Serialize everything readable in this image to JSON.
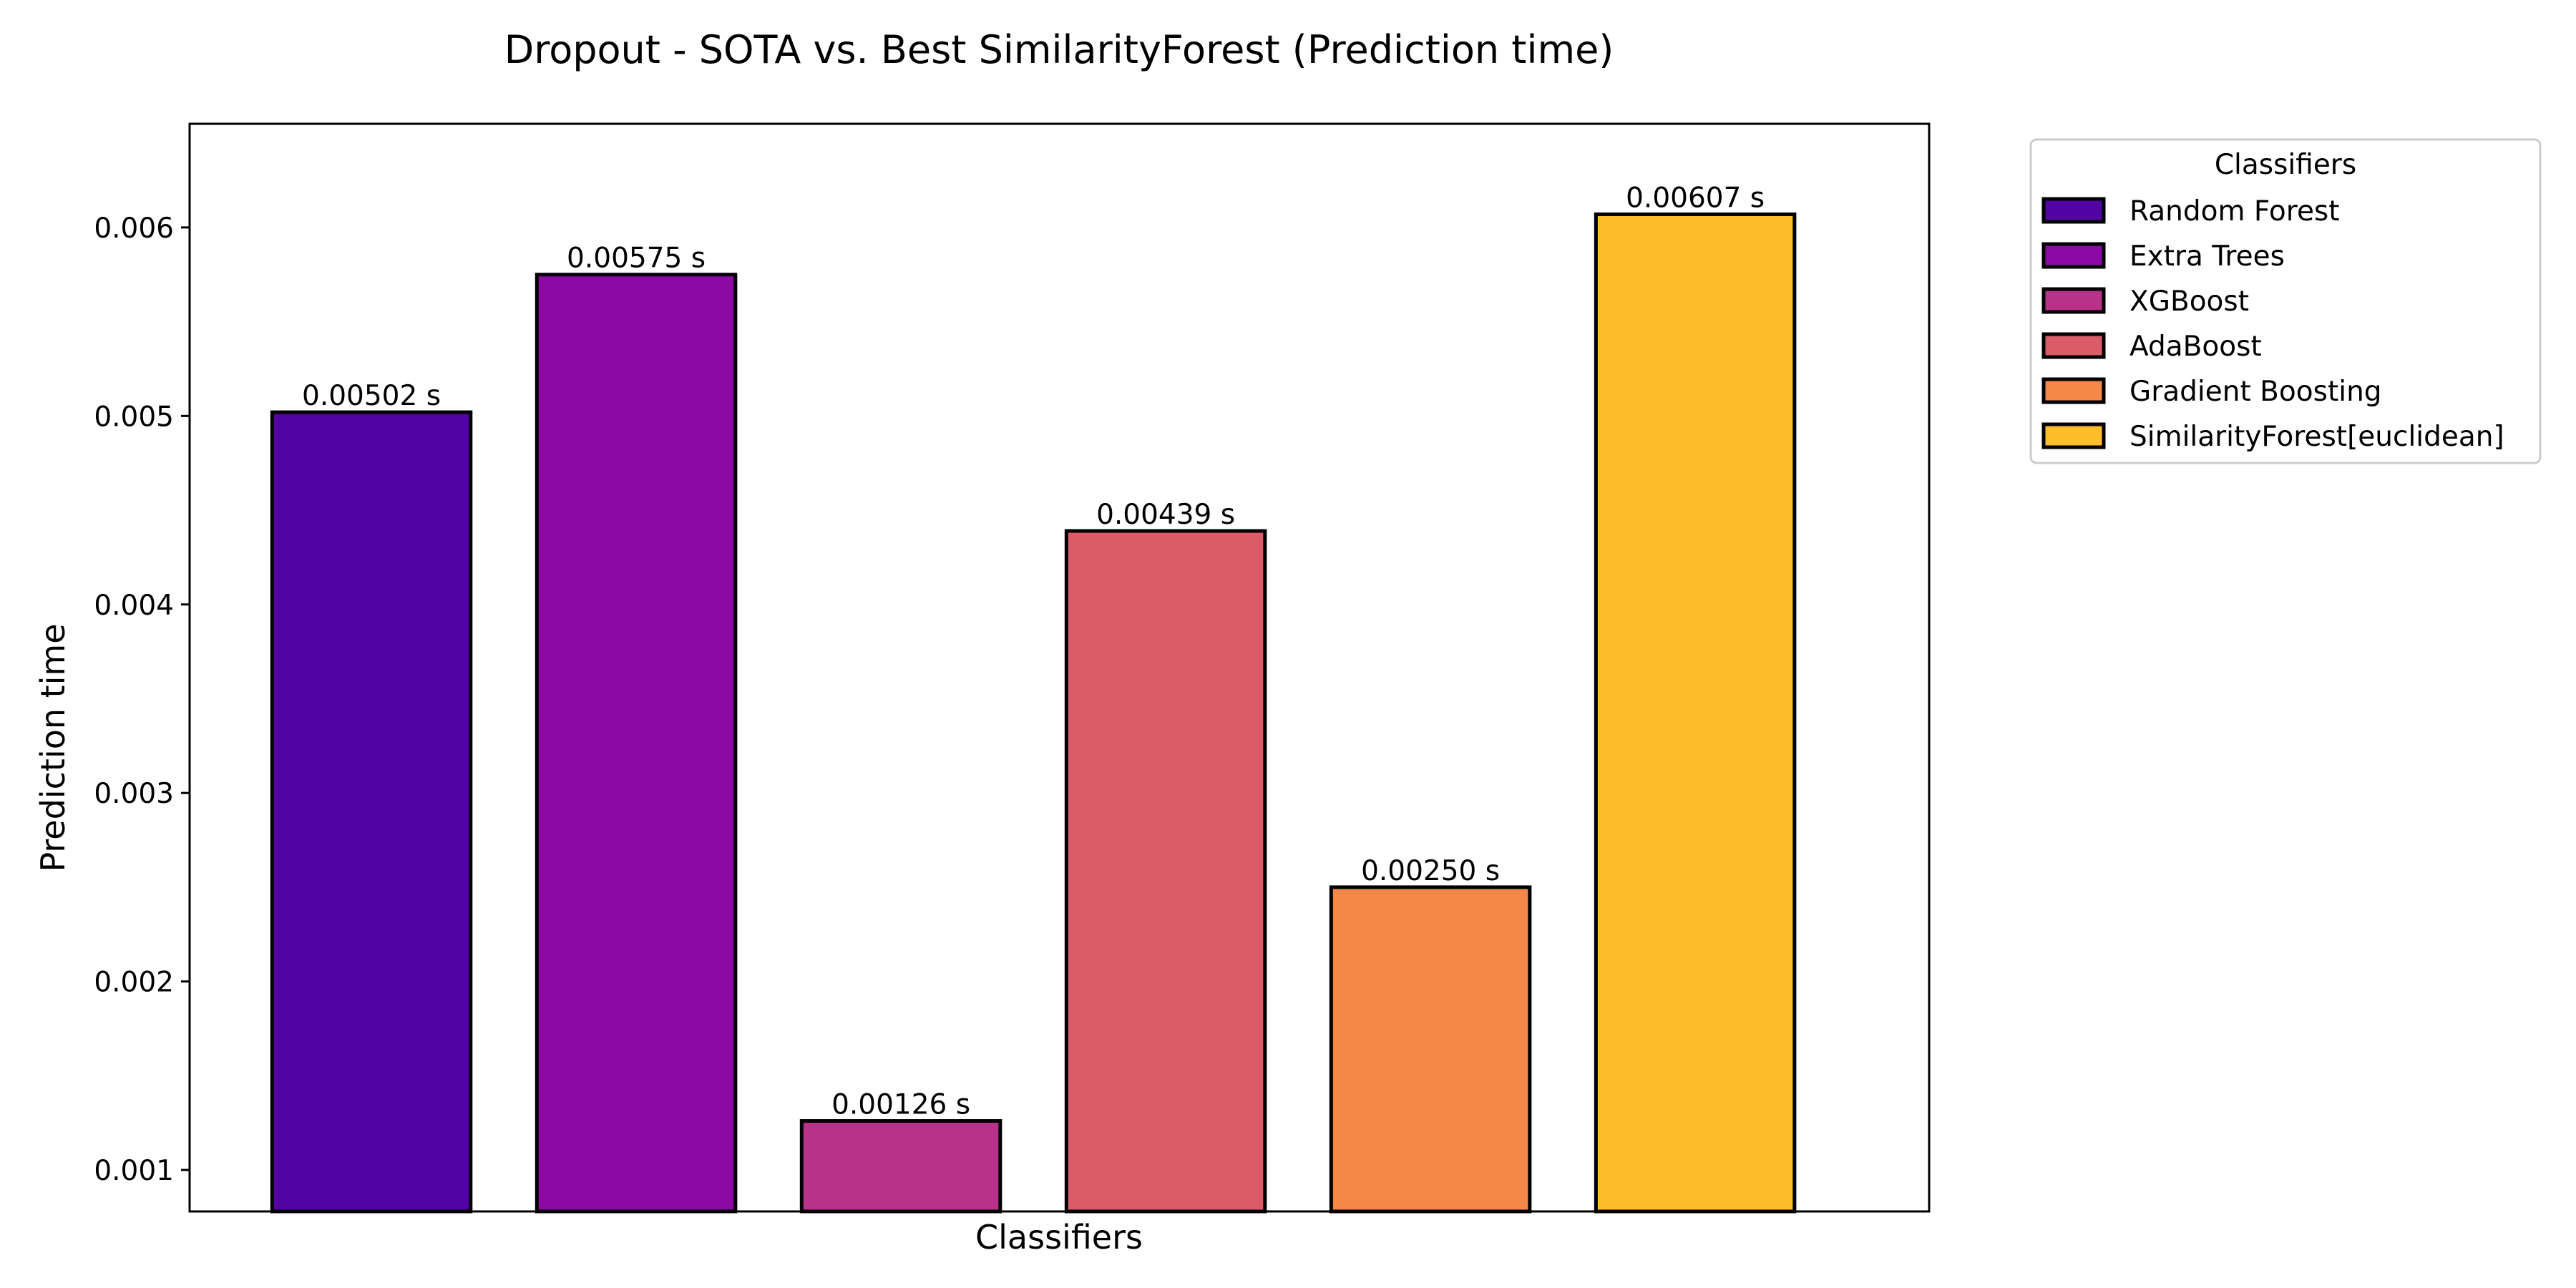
{
  "chart_data": {
    "type": "bar",
    "title": "Dropout - SOTA vs. Best SimilarityForest (Prediction time)",
    "xlabel": "Classifiers",
    "ylabel": "Prediction time",
    "ylim": [
      0.00078,
      0.00655
    ],
    "yticks": [
      0.001,
      0.002,
      0.003,
      0.004,
      0.005,
      0.006
    ],
    "ytick_labels": [
      "0.001",
      "0.002",
      "0.003",
      "0.004",
      "0.005",
      "0.006"
    ],
    "categories": [
      "Random Forest",
      "Extra Trees",
      "XGBoost",
      "AdaBoost",
      "Gradient Boosting",
      "SimilarityForest[euclidean]"
    ],
    "values": [
      0.00502,
      0.00575,
      0.00126,
      0.00439,
      0.0025,
      0.00607
    ],
    "value_labels": [
      "0.00502 s",
      "0.00575 s",
      "0.00126 s",
      "0.00439 s",
      "0.00250 s",
      "0.00607 s"
    ],
    "colors": [
      "#5302a3",
      "#8b0aa5",
      "#b83289",
      "#db5c68",
      "#f48849",
      "#febd2a"
    ],
    "grid": false,
    "legend": {
      "title": "Classifiers",
      "placement": "outside-top-right",
      "entries": [
        "Random Forest",
        "Extra Trees",
        "XGBoost",
        "AdaBoost",
        "Gradient Boosting",
        "SimilarityForest[euclidean]"
      ]
    }
  }
}
